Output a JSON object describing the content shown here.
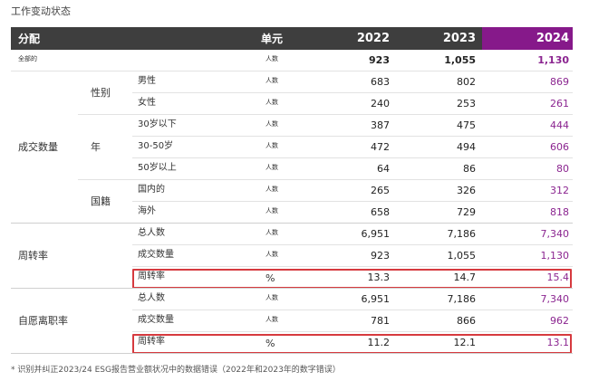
{
  "title": "工作变动状态",
  "table": {
    "header": [
      "分配",
      "单元",
      "2022",
      "2023",
      "2024"
    ],
    "total": {
      "label": "全部的",
      "unit": "人数",
      "values": [
        "923",
        "1,055",
        "1,130"
      ]
    },
    "groups": [
      {
        "label": "成交数量",
        "subgroups": [
          {
            "label": "性别",
            "rows": [
              {
                "label": "男性",
                "unit": "人数",
                "values": [
                  "683",
                  "802",
                  "869"
                ]
              },
              {
                "label": "女性",
                "unit": "人数",
                "values": [
                  "240",
                  "253",
                  "261"
                ]
              }
            ]
          },
          {
            "label": "年",
            "rows": [
              {
                "label": "30岁以下",
                "unit": "人数",
                "values": [
                  "387",
                  "475",
                  "444"
                ]
              },
              {
                "label": "30-50岁",
                "unit": "人数",
                "values": [
                  "472",
                  "494",
                  "606"
                ]
              },
              {
                "label": "50岁以上",
                "unit": "人数",
                "values": [
                  "64",
                  "86",
                  "80"
                ]
              }
            ]
          },
          {
            "label": "国籍",
            "rows": [
              {
                "label": "国内的",
                "unit": "人数",
                "values": [
                  "265",
                  "326",
                  "312"
                ]
              },
              {
                "label": "海外",
                "unit": "人数",
                "values": [
                  "658",
                  "729",
                  "818"
                ]
              }
            ]
          }
        ]
      },
      {
        "label": "周转率",
        "rows": [
          {
            "label": "总人数",
            "unit": "人数",
            "values": [
              "6,951",
              "7,186",
              "7,340"
            ]
          },
          {
            "label": "成交数量",
            "unit": "人数",
            "values": [
              "923",
              "1,055",
              "1,130"
            ]
          },
          {
            "label": "周转率",
            "unit": "%",
            "values": [
              "13.3",
              "14.7",
              "15.4"
            ],
            "highlight": true
          }
        ]
      },
      {
        "label": "自愿离职率",
        "rows": [
          {
            "label": "总人数",
            "unit": "人数",
            "values": [
              "6,951",
              "7,186",
              "7,340"
            ]
          },
          {
            "label": "成交数量",
            "unit": "人数",
            "values": [
              "781",
              "866",
              "962"
            ]
          },
          {
            "label": "周转率",
            "unit": "%",
            "values": [
              "11.2",
              "12.1",
              "13.1"
            ],
            "highlight": true
          }
        ]
      }
    ]
  },
  "footnote": "* 识别并纠正2023/24 ESG报告营业额状况中的数据错误（2022年和2023年的数字错误）"
}
